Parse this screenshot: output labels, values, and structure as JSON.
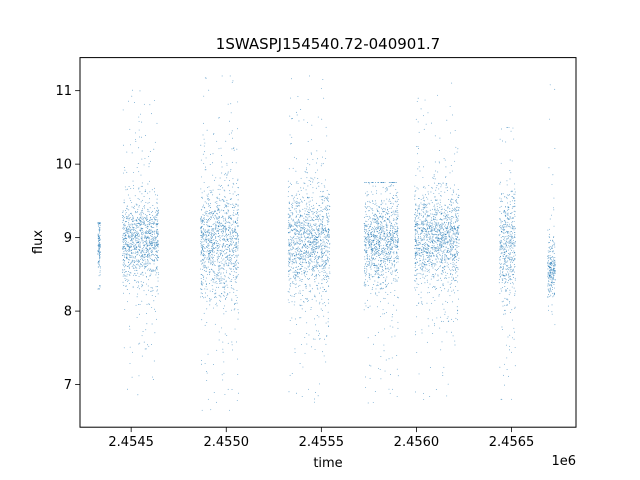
{
  "chart_data": {
    "type": "scatter",
    "title": "1SWASPJ154540.72-040901.7",
    "xlabel": "time",
    "ylabel": "flux",
    "x_offset_label": "1e6",
    "xlim": [
      2454231,
      2456839
    ],
    "ylim": [
      6.42,
      11.45
    ],
    "x_ticks": [
      {
        "value": 2454500,
        "label": "2.4545"
      },
      {
        "value": 2455000,
        "label": "2.4550"
      },
      {
        "value": 2455500,
        "label": "2.4555"
      },
      {
        "value": 2456000,
        "label": "2.4560"
      },
      {
        "value": 2456500,
        "label": "2.4565"
      }
    ],
    "y_ticks": [
      {
        "value": 7,
        "label": "7"
      },
      {
        "value": 8,
        "label": "8"
      },
      {
        "value": 9,
        "label": "9"
      },
      {
        "value": 10,
        "label": "10"
      },
      {
        "value": 11,
        "label": "11"
      }
    ],
    "marker_color": "#1f77b4",
    "grid": false,
    "legend": "none",
    "seasons": [
      {
        "x_range": [
          2454325,
          2454338
        ],
        "y_center": 8.95,
        "y_spread": 0.25,
        "lower_tail": 8.3,
        "upper_tail": 9.2
      },
      {
        "x_range": [
          2454455,
          2454645
        ],
        "y_center": 8.95,
        "y_spread": 0.28,
        "lower_tail": 6.65,
        "upper_tail": 11.15
      },
      {
        "x_range": [
          2454865,
          2455065
        ],
        "y_center": 8.95,
        "y_spread": 0.38,
        "lower_tail": 6.65,
        "upper_tail": 11.2
      },
      {
        "x_range": [
          2455325,
          2455545
        ],
        "y_center": 8.95,
        "y_spread": 0.35,
        "lower_tail": 6.65,
        "upper_tail": 11.2
      },
      {
        "x_range": [
          2455725,
          2455905
        ],
        "y_center": 8.95,
        "y_spread": 0.3,
        "lower_tail": 6.75,
        "upper_tail": 9.75
      },
      {
        "x_range": [
          2455990,
          2456225
        ],
        "y_center": 9.0,
        "y_spread": 0.3,
        "lower_tail": 6.65,
        "upper_tail": 11.15
      },
      {
        "x_range": [
          2456435,
          2456520
        ],
        "y_center": 8.9,
        "y_spread": 0.38,
        "lower_tail": 6.8,
        "upper_tail": 10.5
      },
      {
        "x_range": [
          2456690,
          2456730
        ],
        "y_center": 8.55,
        "y_spread": 0.18,
        "lower_tail": 6.9,
        "upper_tail": 11.15
      }
    ]
  }
}
